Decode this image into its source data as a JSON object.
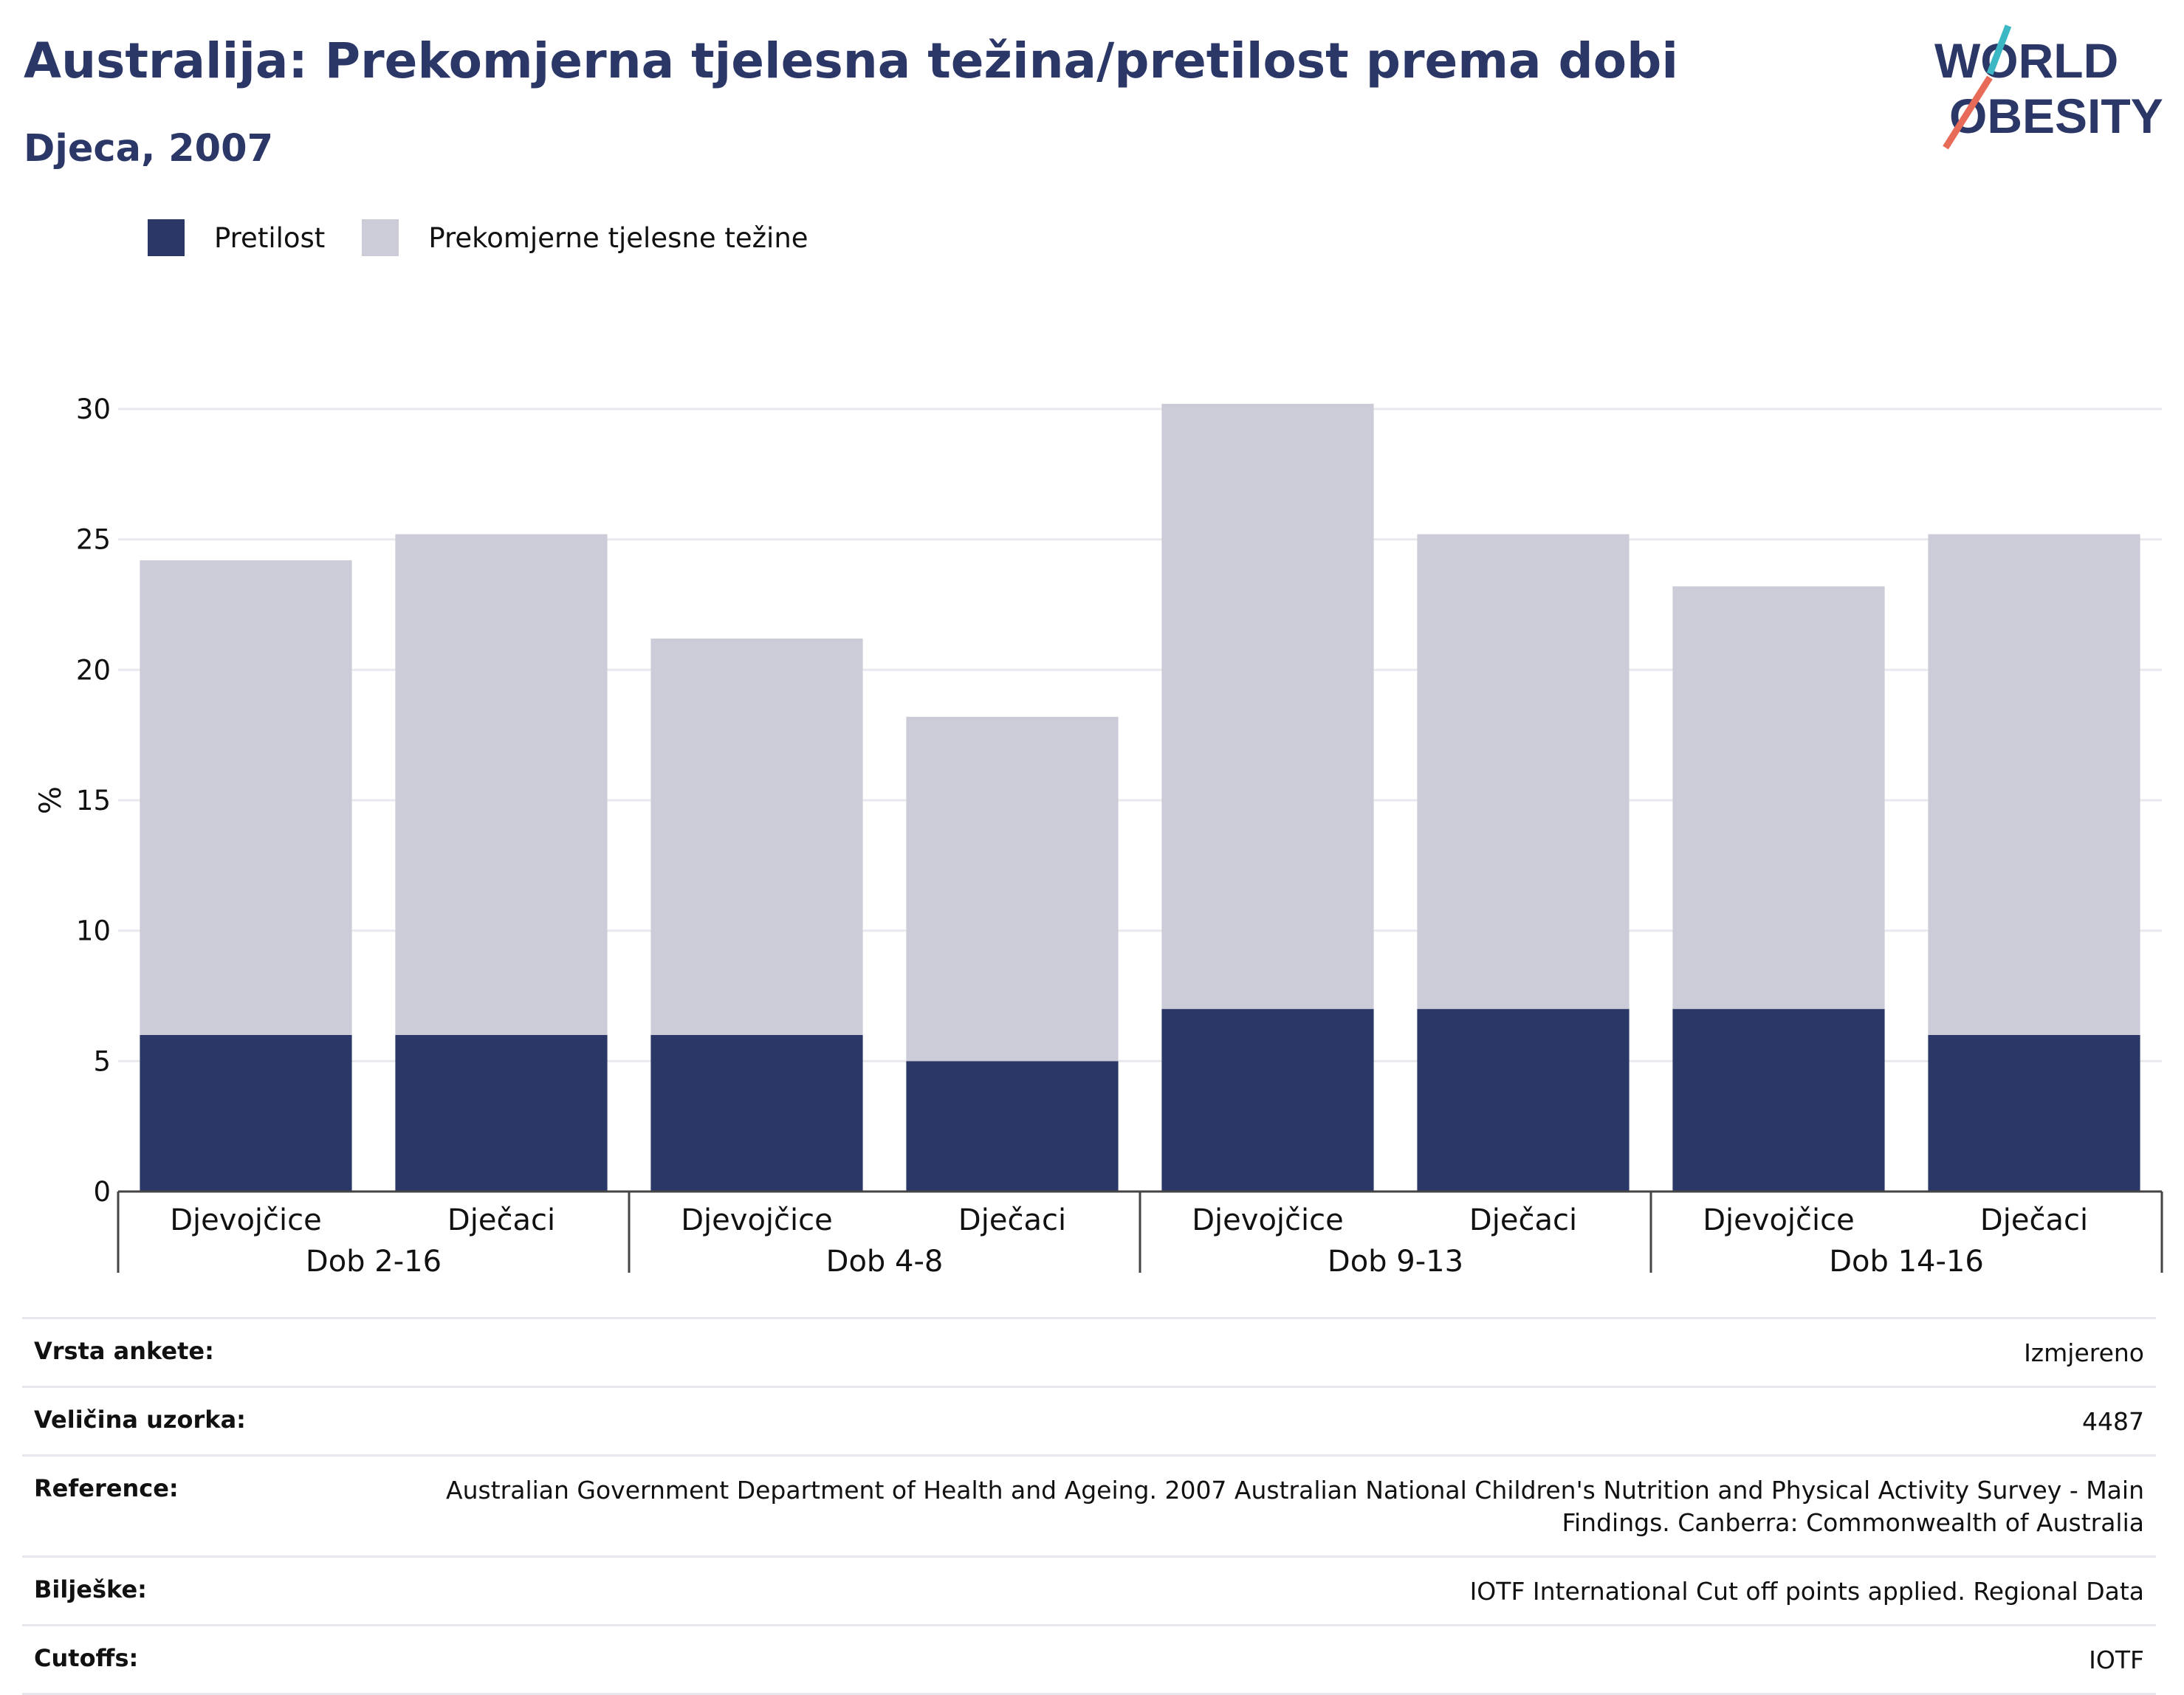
{
  "header": {
    "title": "Australija: Prekomjerna tjelesna težina/pretilost prema dobi",
    "subtitle": "Djeca, 2007",
    "logo_text": [
      "WORLD",
      "OBESITY"
    ]
  },
  "legend": {
    "items": [
      {
        "label": "Pretilost",
        "color": "#2b3766"
      },
      {
        "label": "Prekomjerne tjelesne težine",
        "color": "#cbccd8"
      }
    ]
  },
  "chart_data": {
    "type": "bar",
    "stacked": true,
    "ylabel": "%",
    "ylim": [
      0,
      30
    ],
    "yticks": [
      0,
      5,
      10,
      15,
      20,
      25,
      30
    ],
    "grid": true,
    "legend_position": "top-left",
    "groups": [
      "Dob 2-16",
      "Dob 4-8",
      "Dob 9-13",
      "Dob 14-16"
    ],
    "categories": [
      "Djevojčice",
      "Dječaci",
      "Djevojčice",
      "Dječaci",
      "Djevojčice",
      "Dječaci",
      "Djevojčice",
      "Dječaci"
    ],
    "series": [
      {
        "name": "Pretilost",
        "color": "#2b3766",
        "values": [
          6,
          6,
          6,
          5,
          7,
          7,
          7,
          6
        ]
      },
      {
        "name": "Prekomjerne tjelesne težine",
        "color": "#cbccd8",
        "values": [
          18.2,
          19.2,
          15.2,
          13.2,
          23.2,
          18.2,
          16.2,
          19.2
        ]
      }
    ]
  },
  "meta": {
    "rows": [
      {
        "label": "Vrsta ankete:",
        "value": "Izmjereno"
      },
      {
        "label": "Veličina uzorka:",
        "value": "4487"
      },
      {
        "label": "Reference:",
        "value": "Australian Government Department of Health and Ageing. 2007 Australian National Children's Nutrition and Physical Activity Survey - Main Findings. Canberra: Commonwealth of Australia"
      },
      {
        "label": "Bilješke:",
        "value": "IOTF International Cut off points applied. Regional Data"
      },
      {
        "label": "Cutoffs:",
        "value": "IOTF"
      }
    ]
  }
}
